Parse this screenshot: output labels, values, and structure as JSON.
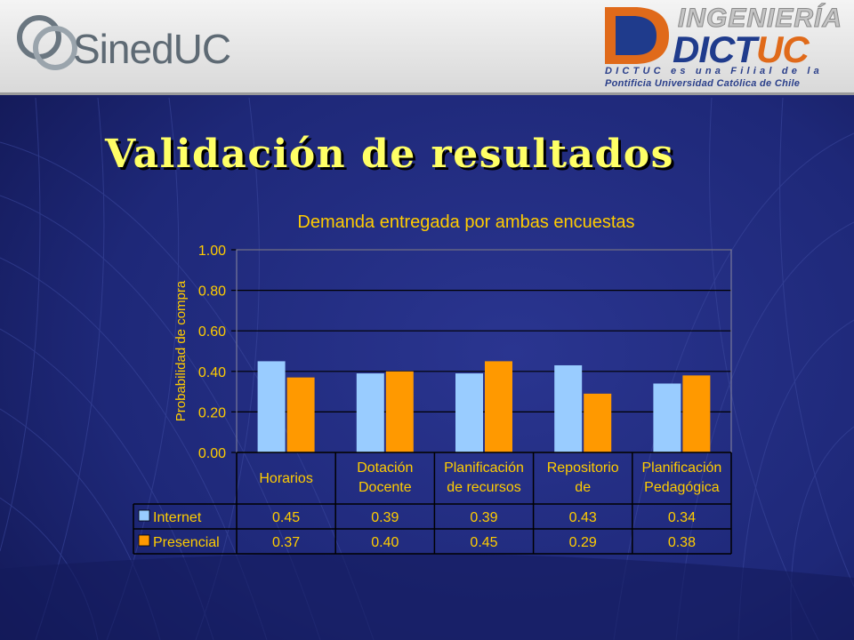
{
  "header": {
    "left_logo_text": "SinedUC",
    "right_logo": {
      "line_ingenieria": "INGENIERÍA",
      "brand_dict": "DICT",
      "brand_uc": "UC",
      "tagline_1": "DICTUC es una Filial de la",
      "tagline_2": "Pontificia Universidad Católica de Chile"
    }
  },
  "slide": {
    "title": "Validación de resultados"
  },
  "chart_data": {
    "type": "bar",
    "title": "Demanda entregada por ambas encuestas",
    "ylabel": "Probabilidad de compra",
    "xlabel": "",
    "ylim": [
      0,
      1.0
    ],
    "yticks": [
      "0.00",
      "0.20",
      "0.40",
      "0.60",
      "0.80",
      "1.00"
    ],
    "grid": true,
    "legend": "data-table-left",
    "categories": [
      [
        "Horarios"
      ],
      [
        "Dotación",
        "Docente"
      ],
      [
        "Planificación",
        "de recursos"
      ],
      [
        "Repositorio",
        "de"
      ],
      [
        "Planificación",
        "Pedagógica"
      ]
    ],
    "series": [
      {
        "name": "Internet",
        "color": "#99ccff",
        "values": [
          0.45,
          0.39,
          0.39,
          0.43,
          0.34
        ],
        "labels": [
          "0.45",
          "0.39",
          "0.39",
          "0.43",
          "0.34"
        ]
      },
      {
        "name": "Presencial",
        "color": "#ff9900",
        "values": [
          0.37,
          0.4,
          0.45,
          0.29,
          0.38
        ],
        "labels": [
          "0.37",
          "0.40",
          "0.45",
          "0.29",
          "0.38"
        ]
      }
    ],
    "colors": {
      "text": "#ffcc00",
      "grid": "#000000",
      "plot_bg": "#1b2470"
    }
  }
}
